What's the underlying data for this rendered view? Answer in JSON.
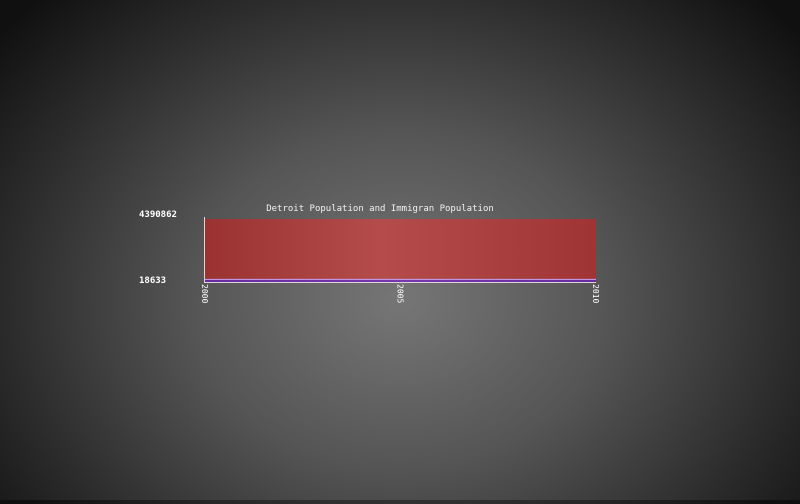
{
  "chart_data": {
    "type": "area",
    "title": "Detroit Population and Immigran Population",
    "xlabel": "",
    "ylabel": "",
    "x": [
      2000,
      2010
    ],
    "x_ticks": [
      "2000",
      "2005",
      "2010"
    ],
    "y_ticks": [
      "4390862",
      "18633"
    ],
    "ylim": [
      18633,
      4390862
    ],
    "grid": false,
    "series": [
      {
        "values": [
          4390862,
          4390862
        ],
        "color": "#b34a4a"
      },
      {
        "values": [
          200000,
          200000
        ],
        "color": "#6a2c9a"
      }
    ]
  }
}
